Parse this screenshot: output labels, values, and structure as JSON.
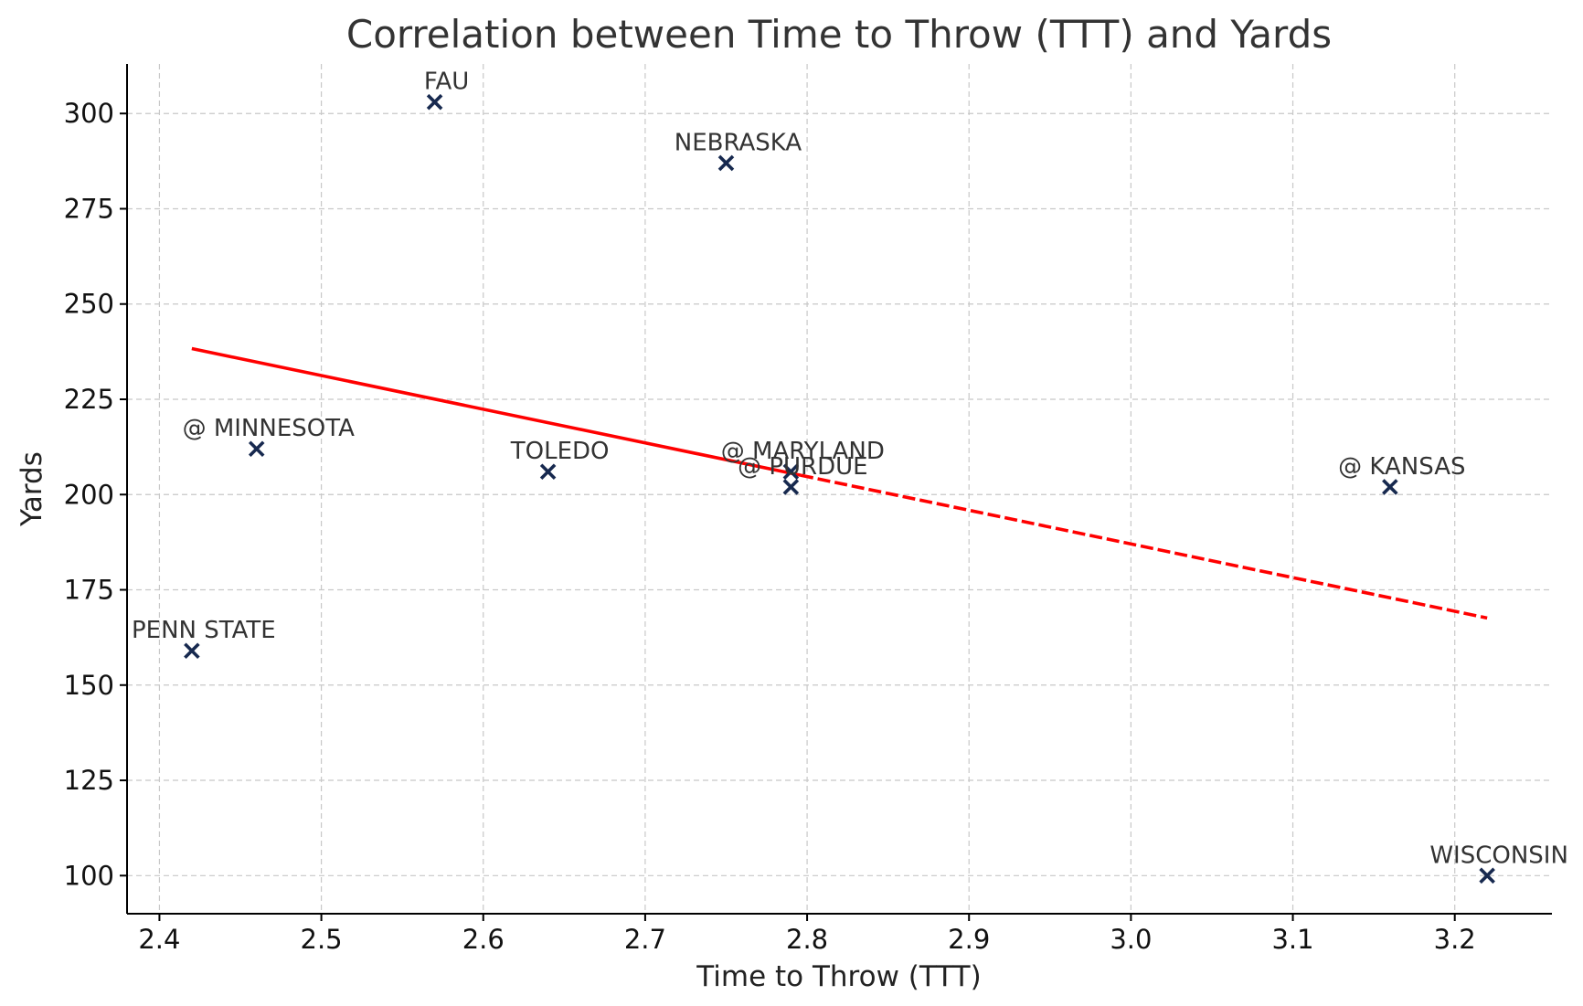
{
  "chart_data": {
    "type": "scatter",
    "title": "Correlation between Time to Throw (TTT) and Yards",
    "xlabel": "Time to Throw (TTT)",
    "ylabel": "Yards",
    "xlim": [
      2.38,
      3.26
    ],
    "ylim": [
      90,
      313
    ],
    "xticks": [
      2.4,
      2.5,
      2.6,
      2.7,
      2.8,
      2.9,
      3.0,
      3.1,
      3.2
    ],
    "xtick_labels": [
      "2.4",
      "2.5",
      "2.6",
      "2.7",
      "2.8",
      "2.9",
      "3.0",
      "3.1",
      "3.2"
    ],
    "yticks": [
      100,
      125,
      150,
      175,
      200,
      225,
      250,
      275,
      300
    ],
    "ytick_labels": [
      "100",
      "125",
      "150",
      "175",
      "200",
      "225",
      "250",
      "275",
      "300"
    ],
    "grid": true,
    "marker": "x",
    "marker_color": "#17294f",
    "trend_color": "#ff0000",
    "points": [
      {
        "label": "FAU",
        "x": 2.57,
        "y": 303
      },
      {
        "label": "NEBRASKA",
        "x": 2.75,
        "y": 287
      },
      {
        "label": "@ MINNESOTA",
        "x": 2.46,
        "y": 212
      },
      {
        "label": "TOLEDO",
        "x": 2.64,
        "y": 206
      },
      {
        "label": "@ MARYLAND",
        "x": 2.79,
        "y": 206
      },
      {
        "label": "@ PURDUE",
        "x": 2.79,
        "y": 202
      },
      {
        "label": "@ KANSAS",
        "x": 3.16,
        "y": 202
      },
      {
        "label": "PENN STATE",
        "x": 2.42,
        "y": 159
      },
      {
        "label": "WISCONSIN",
        "x": 3.22,
        "y": 100
      }
    ],
    "trend_line": {
      "x": [
        2.42,
        3.22
      ],
      "y": [
        238.3,
        167.6
      ]
    }
  }
}
